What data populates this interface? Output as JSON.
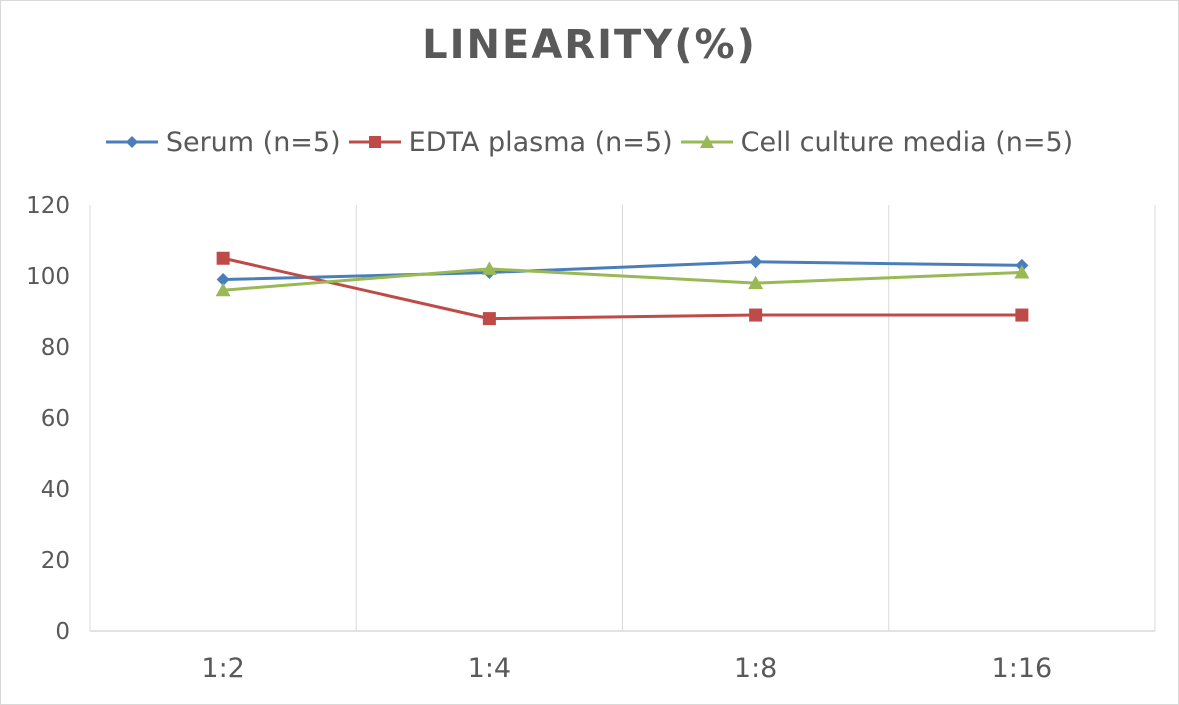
{
  "chart_data": {
    "type": "line",
    "title": "LINEARITY(%)",
    "categories": [
      "1:2",
      "1:4",
      "1:8",
      "1:16"
    ],
    "series": [
      {
        "name": "Serum (n=5)",
        "values": [
          99,
          101,
          104,
          103
        ],
        "color": "#4a7ebb",
        "marker": "diamond"
      },
      {
        "name": "EDTA plasma (n=5)",
        "values": [
          105,
          88,
          89,
          89
        ],
        "color": "#be4b48",
        "marker": "square"
      },
      {
        "name": "Cell culture media (n=5)",
        "values": [
          96,
          102,
          98,
          101
        ],
        "color": "#98b954",
        "marker": "triangle"
      }
    ],
    "yticks": [
      "0",
      "20",
      "40",
      "60",
      "80",
      "100",
      "120"
    ],
    "ylim": [
      0,
      120
    ],
    "xlabel": "",
    "ylabel": "",
    "grid": "vertical",
    "legend": "top"
  }
}
